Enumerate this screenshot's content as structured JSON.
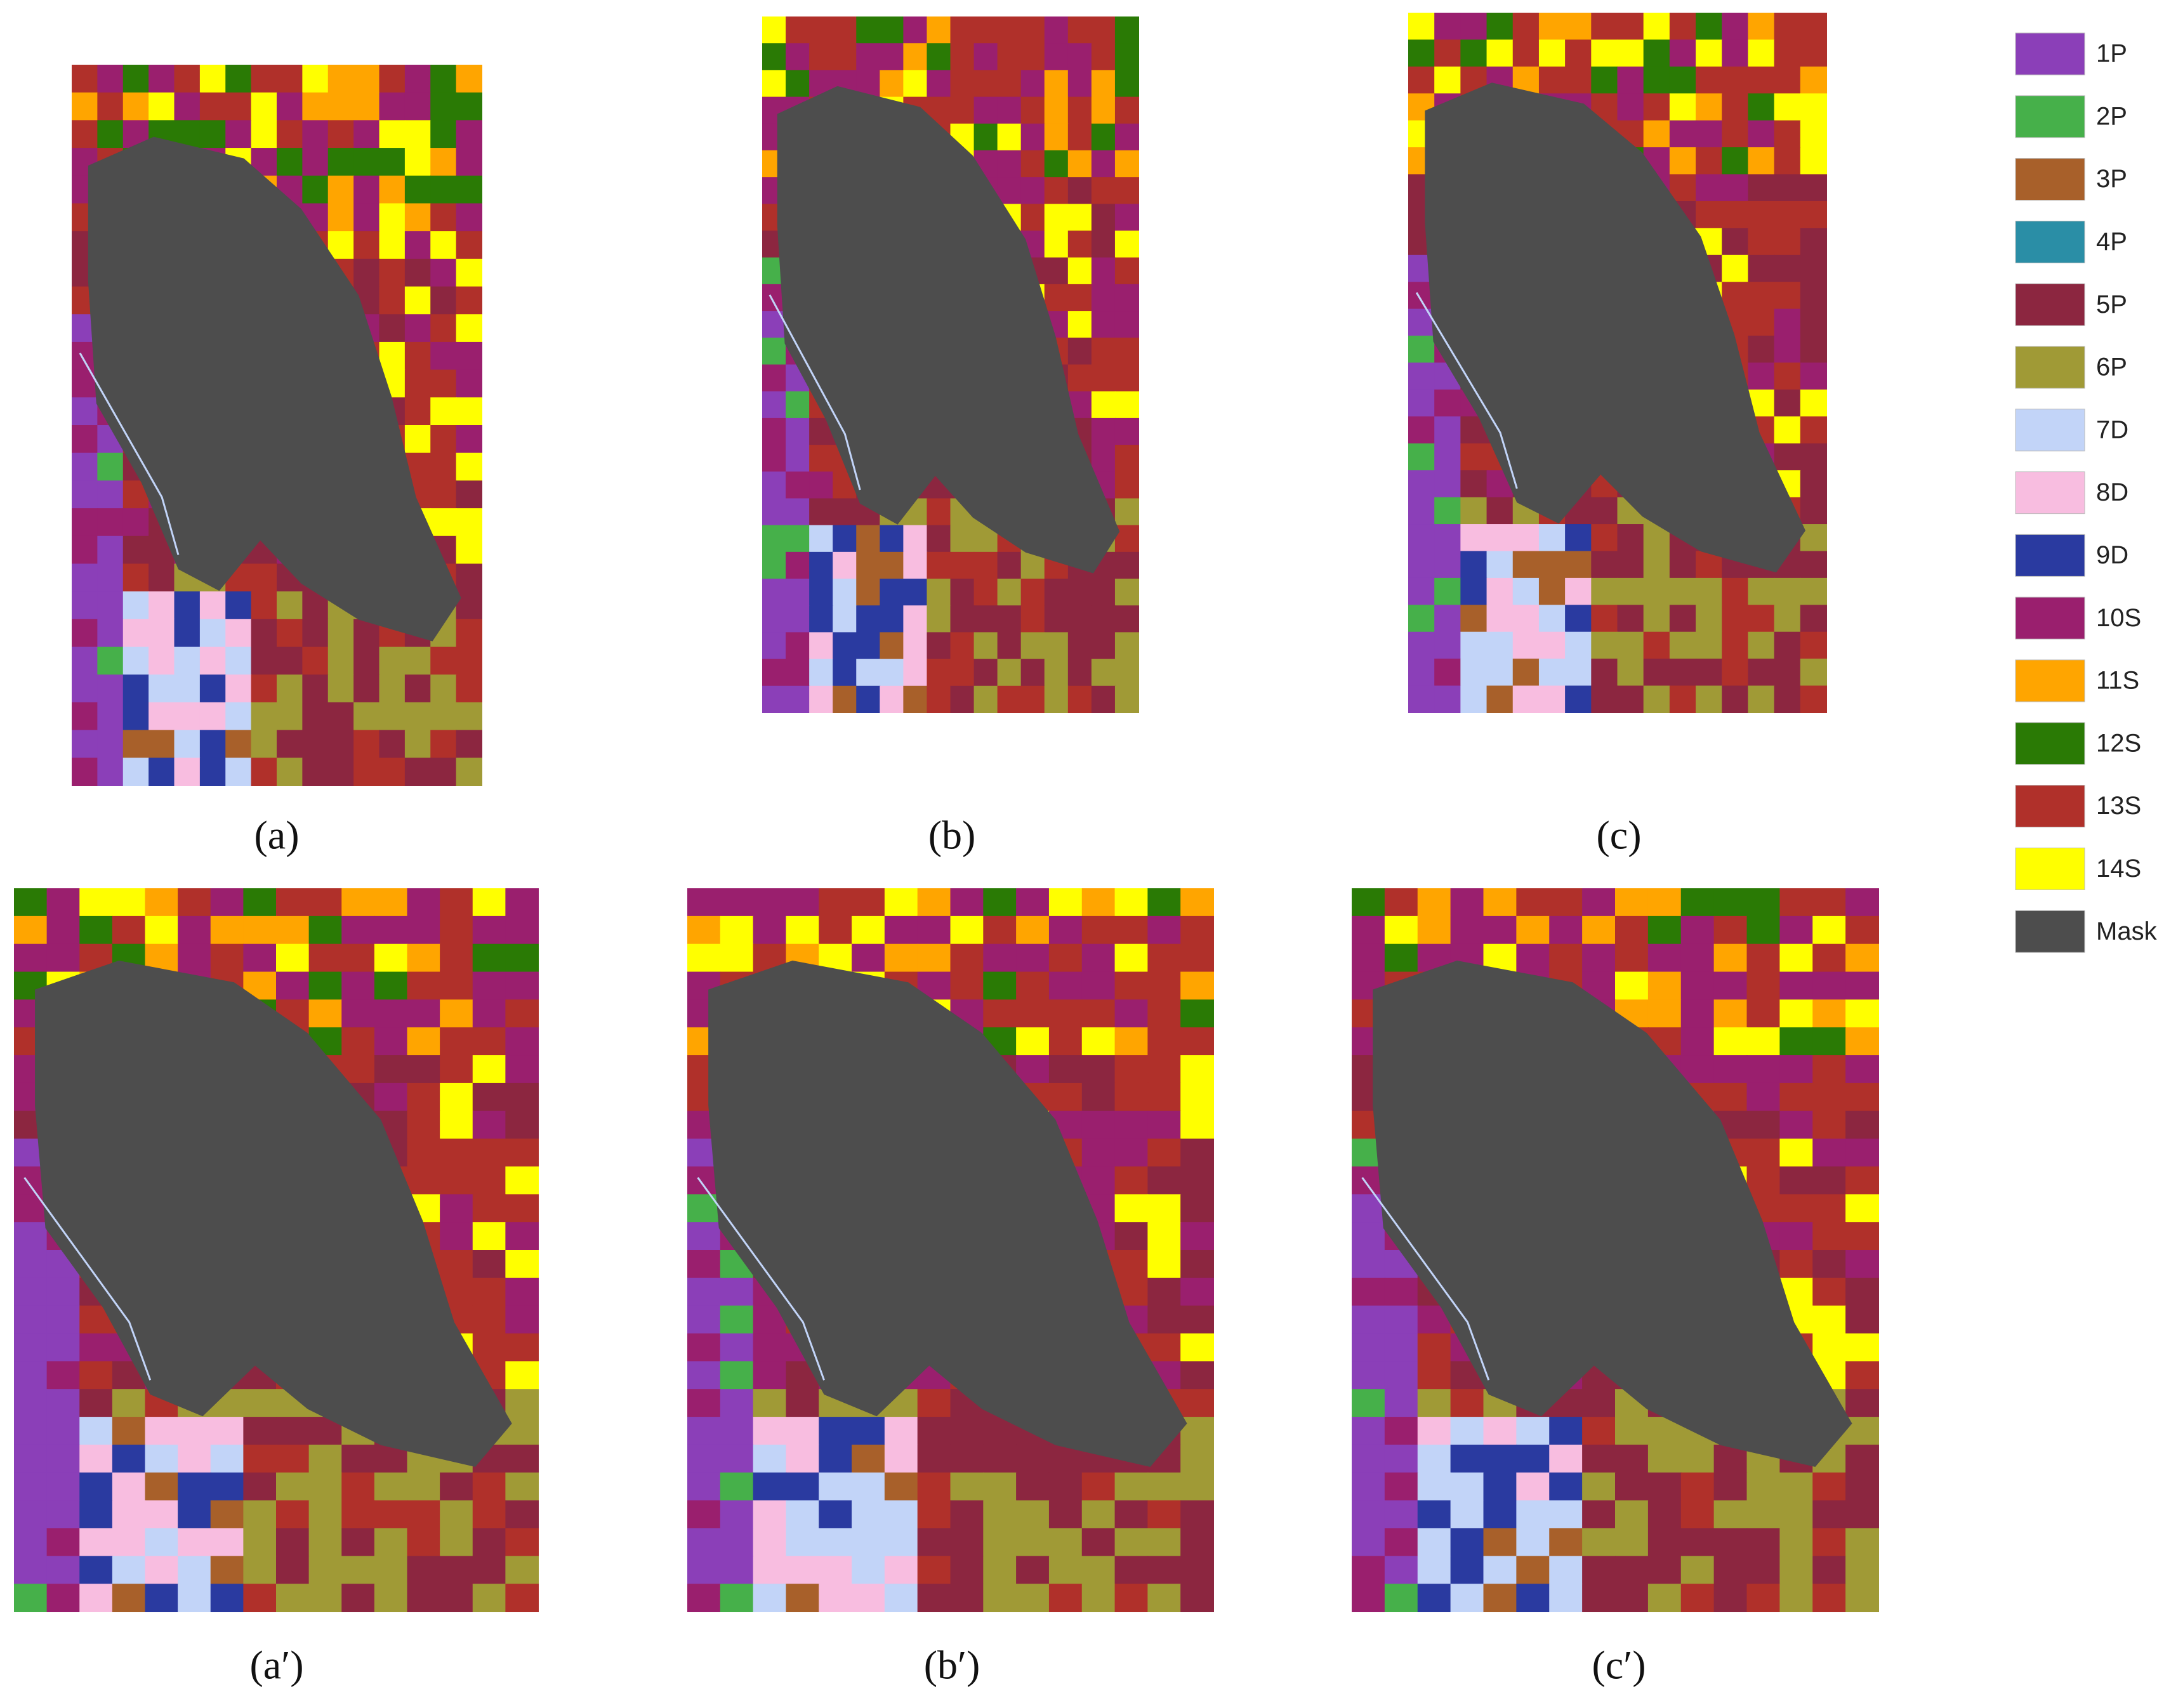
{
  "panels": [
    {
      "label": "(a)"
    },
    {
      "label": "(b)"
    },
    {
      "label": "(c)"
    },
    {
      "label": "(a′)"
    },
    {
      "label": "(b′)"
    },
    {
      "label": "(c′)"
    }
  ],
  "legend": [
    {
      "label": "1P",
      "color": "#8b3fb8"
    },
    {
      "label": "2P",
      "color": "#46b04a"
    },
    {
      "label": "3P",
      "color": "#a8602a"
    },
    {
      "label": "4P",
      "color": "#2a8ea6"
    },
    {
      "label": "5P",
      "color": "#8c2640"
    },
    {
      "label": "6P",
      "color": "#a09a36"
    },
    {
      "label": "7D",
      "color": "#c2d4f8"
    },
    {
      "label": "8D",
      "color": "#f8bde0"
    },
    {
      "label": "9D",
      "color": "#2a3aa0"
    },
    {
      "label": "10S",
      "color": "#9a1f6e"
    },
    {
      "label": "11S",
      "color": "#ffa500"
    },
    {
      "label": "12S",
      "color": "#2a7a05"
    },
    {
      "label": "13S",
      "color": "#b0302a"
    },
    {
      "label": "14S",
      "color": "#ffff00"
    },
    {
      "label": "Mask",
      "color": "#4d4d4d"
    }
  ]
}
